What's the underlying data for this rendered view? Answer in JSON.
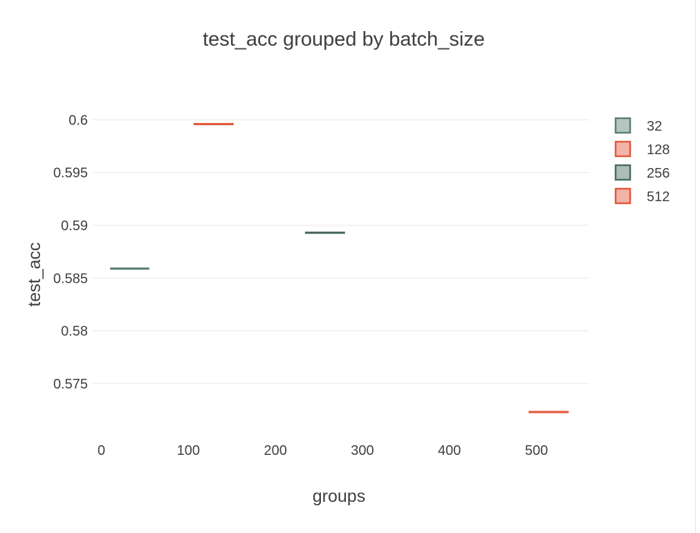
{
  "chart_data": {
    "type": "box",
    "title": "test_acc grouped by batch_size",
    "xlabel": "groups",
    "ylabel": "test_acc",
    "xlim": [
      -10,
      560
    ],
    "ylim": [
      0.5704,
      0.6035
    ],
    "x_ticks": [
      0,
      100,
      200,
      300,
      400,
      500
    ],
    "y_ticks": [
      0.575,
      0.58,
      0.585,
      0.59,
      0.595,
      0.6
    ],
    "x_tick_labels": [
      "0",
      "100",
      "200",
      "300",
      "400",
      "500"
    ],
    "y_tick_labels": [
      "0.575",
      "0.58",
      "0.585",
      "0.59",
      "0.595",
      "0.6"
    ],
    "grid": "horizontal",
    "legend_position": "right",
    "series": [
      {
        "name": "32",
        "x_start": 10,
        "x_end": 55,
        "value": 0.5859,
        "color": "#5b7f78"
      },
      {
        "name": "128",
        "x_start": 106,
        "x_end": 152,
        "value": 0.5996,
        "color": "#e2583a"
      },
      {
        "name": "256",
        "x_start": 234,
        "x_end": 280,
        "value": 0.5893,
        "color": "#496a64"
      },
      {
        "name": "512",
        "x_start": 491,
        "x_end": 537,
        "value": 0.5723,
        "color": "#e2583a"
      }
    ]
  }
}
